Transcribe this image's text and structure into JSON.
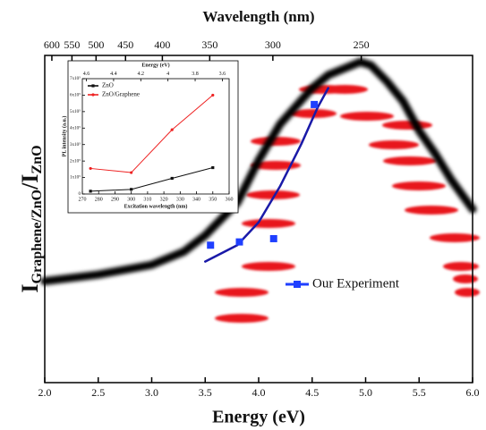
{
  "chart_data": [
    {
      "type": "line",
      "x2_label": "Wavelength (nm)",
      "x_label": "Energy (eV)",
      "y_label_parts": [
        "I",
        "Graphene/ZnO",
        "/I",
        "ZnO"
      ],
      "xlim": [
        2,
        6
      ],
      "xticks": [
        {
          "value": 2,
          "label": "2.0"
        },
        2.5,
        {
          "value": 3,
          "label": "3.0"
        },
        3.5,
        {
          "value": 4,
          "label": "4.0"
        },
        4.5,
        {
          "value": 5,
          "label": "5.0"
        },
        5.5,
        {
          "value": 6,
          "label": "6.0"
        }
      ],
      "x2ticks": [
        600,
        550,
        500,
        450,
        400,
        350,
        300,
        250
      ],
      "ylim": [
        0,
        1
      ],
      "legend": "bottom-right",
      "series": [
        {
          "color": "#000000",
          "blur": true,
          "width": 9,
          "marker": "none",
          "x": [
            2.0,
            2.5,
            3.0,
            3.3,
            3.5,
            3.8,
            4.0,
            4.2,
            4.5,
            4.65,
            4.8,
            4.95,
            5.05,
            5.2,
            5.35,
            5.5,
            5.65,
            5.8,
            6.0
          ],
          "values": [
            0.31,
            0.33,
            0.36,
            0.4,
            0.45,
            0.55,
            0.68,
            0.79,
            0.9,
            0.94,
            0.96,
            0.98,
            0.97,
            0.92,
            0.86,
            0.77,
            0.7,
            0.62,
            0.53
          ]
        },
        {
          "color": "#1a1aa8",
          "width": 2.5,
          "marker": "none",
          "x": [
            3.5,
            3.8,
            4.0,
            4.2,
            4.4,
            4.55,
            4.65
          ],
          "values": [
            0.37,
            0.42,
            0.49,
            0.6,
            0.73,
            0.84,
            0.9
          ]
        },
        {
          "name": "Our Experiment",
          "color": "#1f3fff",
          "width": 0,
          "marker": "square",
          "x": [
            3.55,
            3.82,
            4.14,
            4.52
          ],
          "values": [
            0.42,
            0.43,
            0.44,
            0.85
          ]
        }
      ]
    },
    {
      "type": "line",
      "x_label": "Excitation wavelength (nm)",
      "x2_label": "Energy (eV)",
      "y_label": "PL intensity (a.u.)",
      "xlim": [
        270,
        360
      ],
      "xticks": [
        270,
        280,
        290,
        300,
        310,
        320,
        330,
        340,
        350,
        360
      ],
      "x2lim": [
        4.63,
        3.55
      ],
      "x2ticks": [
        4.6,
        4.4,
        4.2,
        4,
        3.8,
        3.6
      ],
      "ylim": [
        0,
        700000
      ],
      "yticks": [
        {
          "value": 0,
          "label": "0"
        },
        {
          "value": 100000,
          "label": "1x10⁵"
        },
        {
          "value": 200000,
          "label": "2x10⁵"
        },
        {
          "value": 300000,
          "label": "3x10⁵"
        },
        {
          "value": 400000,
          "label": "4x10⁵"
        },
        {
          "value": 500000,
          "label": "5x10⁵"
        },
        {
          "value": 600000,
          "label": "6x10⁵"
        },
        {
          "value": 700000,
          "label": "7x10⁵"
        }
      ],
      "legend": "top-left",
      "series": [
        {
          "name": "ZnO",
          "color": "#111111",
          "width": 1,
          "marker": "square",
          "x": [
            275,
            300,
            325,
            350
          ],
          "values": [
            17000,
            28000,
            95000,
            160000
          ]
        },
        {
          "name": "ZnO/Graphene",
          "color": "#ee2222",
          "width": 1,
          "marker": "circle",
          "x": [
            275,
            300,
            325,
            350
          ],
          "values": [
            155000,
            130000,
            390000,
            600000
          ]
        }
      ]
    }
  ]
}
